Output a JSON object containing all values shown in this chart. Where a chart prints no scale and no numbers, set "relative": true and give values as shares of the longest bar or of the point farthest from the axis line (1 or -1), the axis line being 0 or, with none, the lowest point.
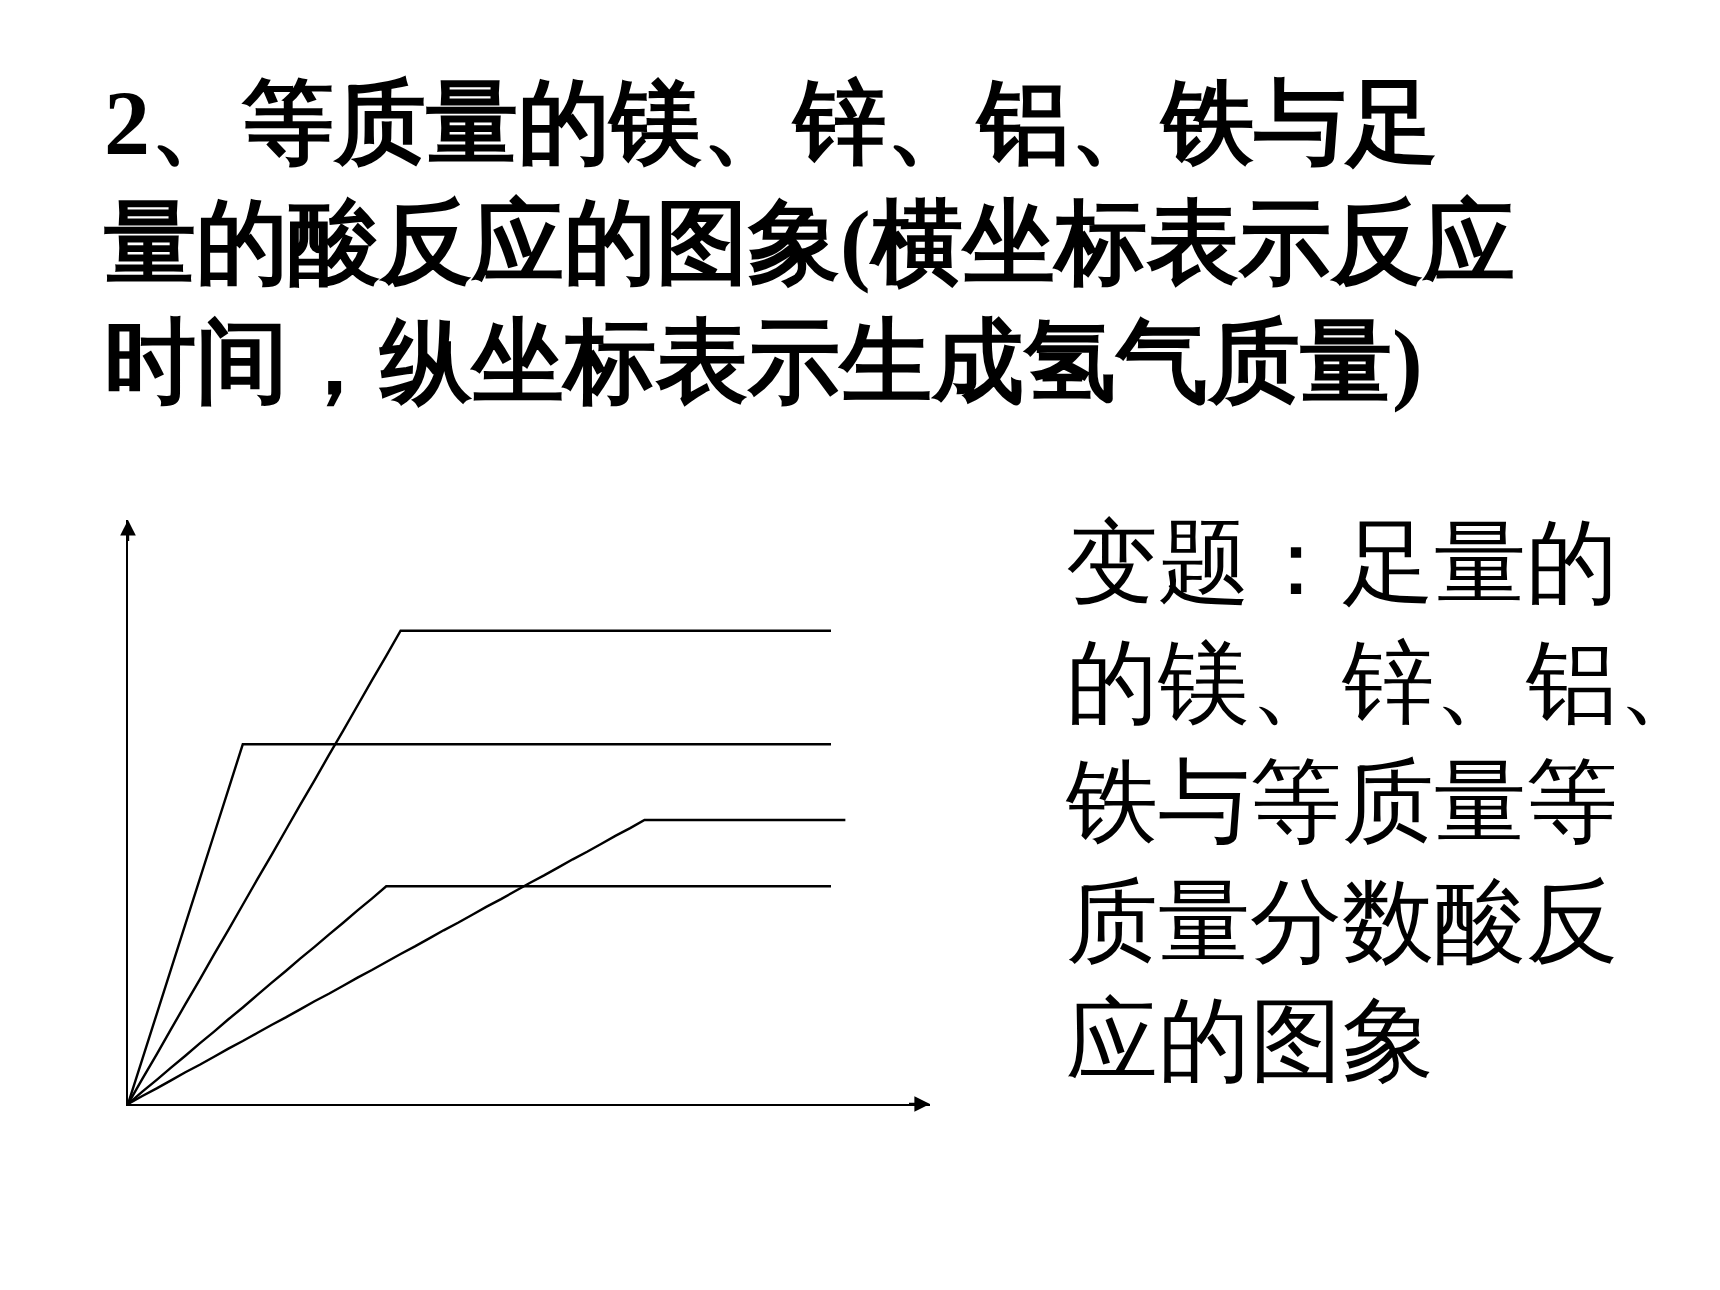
{
  "chart_data": {
    "type": "line",
    "title": "2、等质量的镁、锌、铝、铁与足量的酸反应的图象(横坐标表示反应时间，纵坐标表示生成氢气质量)",
    "annotations": [
      "变题：足量的的镁、锌、铝、铁与等质量等质量分数酸反应的图象"
    ],
    "relative": true,
    "line_style": "solid",
    "categories": [
      null,
      null,
      null,
      null,
      null,
      null,
      null,
      null,
      null,
      null,
      null,
      null,
      null,
      null,
      null,
      null,
      null,
      null,
      null,
      null,
      null,
      null,
      null,
      null,
      null,
      null,
      null,
      null,
      null,
      null,
      null,
      null,
      null,
      null,
      null,
      null,
      null,
      null,
      null,
      null,
      null,
      null,
      null,
      null,
      null,
      null,
      null,
      null,
      null,
      null,
      null
    ],
    "series": [
      {
        "color": "#000000",
        "values": [
          0,
          0.053,
          0.105,
          0.158,
          0.211,
          0.263,
          0.316,
          0.368,
          0.421,
          0.474,
          0.526,
          0.579,
          0.632,
          0.684,
          0.737,
          0.789,
          0.842,
          0.895,
          0.947,
          1,
          1,
          1,
          1,
          1,
          1,
          1,
          1,
          1,
          1,
          1,
          1,
          1,
          1,
          1,
          1,
          1,
          1,
          1,
          1,
          1,
          1,
          1,
          1,
          1,
          1,
          1,
          1,
          1,
          1,
          1,
          null
        ]
      },
      {
        "color": "#000000",
        "values": [
          0,
          0.095,
          0.19,
          0.285,
          0.38,
          0.475,
          0.57,
          0.665,
          0.76,
          0.76,
          0.76,
          0.76,
          0.76,
          0.76,
          0.76,
          0.76,
          0.76,
          0.76,
          0.76,
          0.76,
          0.76,
          0.76,
          0.76,
          0.76,
          0.76,
          0.76,
          0.76,
          0.76,
          0.76,
          0.76,
          0.76,
          0.76,
          0.76,
          0.76,
          0.76,
          0.76,
          0.76,
          0.76,
          0.76,
          0.76,
          0.76,
          0.76,
          0.76,
          0.76,
          0.76,
          0.76,
          0.76,
          0.76,
          0.76,
          0.76,
          null
        ]
      },
      {
        "color": "#000000",
        "values": [
          0,
          0.017,
          0.033,
          0.05,
          0.067,
          0.083,
          0.1,
          0.117,
          0.133,
          0.15,
          0.167,
          0.183,
          0.2,
          0.217,
          0.233,
          0.25,
          0.267,
          0.283,
          0.3,
          0.317,
          0.333,
          0.35,
          0.367,
          0.383,
          0.4,
          0.417,
          0.433,
          0.45,
          0.467,
          0.483,
          0.5,
          0.517,
          0.533,
          0.55,
          0.567,
          0.583,
          0.6,
          0.6,
          0.6,
          0.6,
          0.6,
          0.6,
          0.6,
          0.6,
          0.6,
          0.6,
          0.6,
          0.6,
          0.6,
          0.6,
          0.6
        ]
      },
      {
        "color": "#000000",
        "values": [
          0,
          0.026,
          0.051,
          0.077,
          0.102,
          0.128,
          0.153,
          0.179,
          0.204,
          0.23,
          0.256,
          0.281,
          0.307,
          0.332,
          0.358,
          0.383,
          0.409,
          0.434,
          0.46,
          0.46,
          0.46,
          0.46,
          0.46,
          0.46,
          0.46,
          0.46,
          0.46,
          0.46,
          0.46,
          0.46,
          0.46,
          0.46,
          0.46,
          0.46,
          0.46,
          0.46,
          0.46,
          0.46,
          0.46,
          0.46,
          0.46,
          0.46,
          0.46,
          0.46,
          0.46,
          0.46,
          0.46,
          0.46,
          0.46,
          0.46,
          null
        ]
      }
    ]
  }
}
